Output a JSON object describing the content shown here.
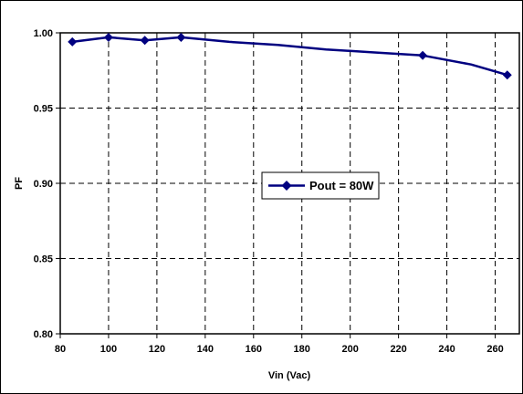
{
  "chart_data": {
    "type": "line",
    "title": "",
    "xlabel": "Vin (Vac)",
    "ylabel": "PF",
    "xlim": [
      80,
      270
    ],
    "ylim": [
      0.8,
      1.0
    ],
    "x_ticks": [
      80,
      100,
      120,
      140,
      160,
      180,
      200,
      220,
      240,
      260
    ],
    "y_ticks": [
      0.8,
      0.85,
      0.9,
      0.95,
      1.0
    ],
    "x_tick_labels": [
      "80",
      "100",
      "120",
      "140",
      "160",
      "180",
      "200",
      "220",
      "240",
      "260"
    ],
    "y_tick_labels": [
      "0.80",
      "0.85",
      "0.90",
      "0.95",
      "1.00"
    ],
    "grid": true,
    "grid_style": "dashed",
    "legend_position": "center",
    "series": [
      {
        "name": "Pout = 80W",
        "color": "#000080",
        "marker": "diamond",
        "x": [
          85,
          100,
          115,
          130,
          230,
          265
        ],
        "y": [
          0.994,
          0.997,
          0.995,
          0.997,
          0.985,
          0.972
        ],
        "curve_x": [
          85,
          100,
          115,
          130,
          150,
          170,
          190,
          210,
          230,
          250,
          265
        ],
        "curve_y": [
          0.994,
          0.997,
          0.995,
          0.997,
          0.994,
          0.992,
          0.989,
          0.987,
          0.985,
          0.979,
          0.972
        ]
      }
    ]
  }
}
